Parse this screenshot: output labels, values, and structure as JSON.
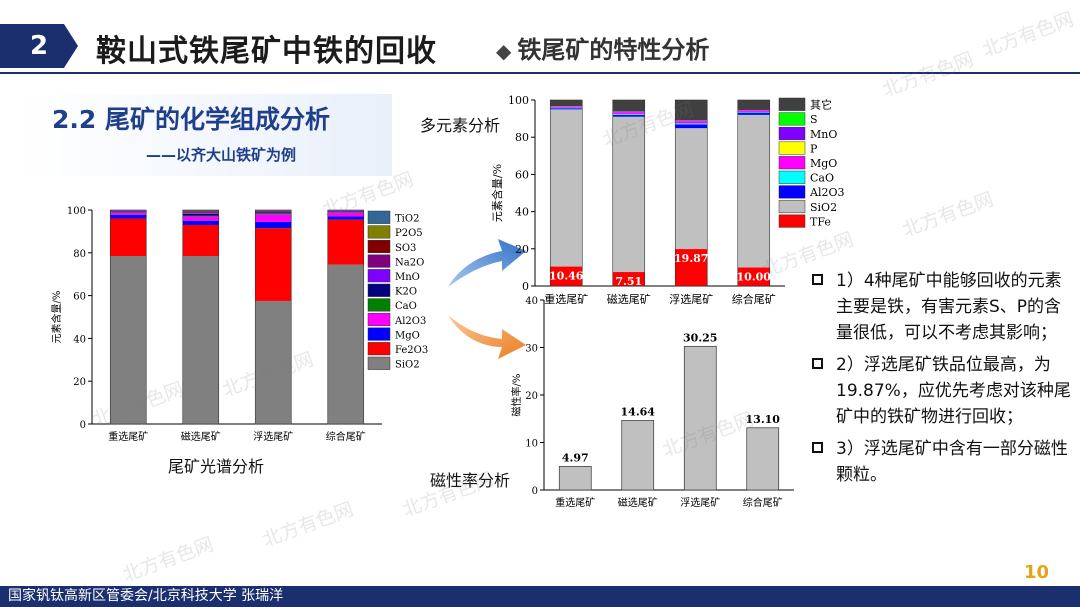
{
  "header": {
    "section_number": "2",
    "title": "鞍山式铁尾矿中铁的回收",
    "subtitle": "铁尾矿的特性分析"
  },
  "section": {
    "title": "2.2 尾矿的化学组成分析",
    "subtitle": "——以齐大山铁矿为例"
  },
  "labels": {
    "spectrum": "尾矿光谱分析",
    "multi": "多元素分析",
    "magnetic": "磁性率分析"
  },
  "bullets": [
    "1）4种尾矿中能够回收的元素主要是铁，有害元素S、P的含量很低，可以不考虑其影响；",
    "2）浮选尾矿铁品位最高，为19.87%，应优先考虑对该种尾矿中的铁矿物进行回收；",
    "3）浮选尾矿中含有一部分磁性颗粒。"
  ],
  "footer": {
    "org": "国家钒钛高新区管委会/北京科技大学 张瑞洋",
    "page": "10"
  },
  "watermark": "北方有色网",
  "colors": {
    "navy": "#1b2f6e",
    "accent": "#e8a21a",
    "arrow_blue": "#3f7fcf",
    "arrow_orange": "#f08a2a"
  },
  "chart_data": [
    {
      "type": "bar",
      "stacked": true,
      "title": "尾矿光谱分析",
      "xlabel": "",
      "ylabel": "元素含量/%",
      "ylim": [
        0,
        100
      ],
      "yticks": [
        0,
        20,
        40,
        60,
        80,
        100
      ],
      "categories": [
        "重选尾矿",
        "磁选尾矿",
        "浮选尾矿",
        "综合尾矿"
      ],
      "series": [
        {
          "name": "SiO2",
          "color": "#808080",
          "values": [
            78.5,
            78.5,
            57.5,
            74.5
          ]
        },
        {
          "name": "Fe2O3",
          "color": "#ff0000",
          "values": [
            17.5,
            14.5,
            34.0,
            21.0
          ]
        },
        {
          "name": "MgO",
          "color": "#0000ff",
          "values": [
            1.8,
            2.0,
            3.0,
            1.5
          ]
        },
        {
          "name": "Al2O3",
          "color": "#ff00ff",
          "values": [
            1.0,
            2.0,
            3.5,
            1.8
          ]
        },
        {
          "name": "CaO",
          "color": "#008000",
          "values": [
            0.3,
            0.4,
            0.6,
            0.3
          ]
        },
        {
          "name": "K2O",
          "color": "#000080",
          "values": [
            0.3,
            0.8,
            0.3,
            0.3
          ]
        },
        {
          "name": "MnO",
          "color": "#8000ff",
          "values": [
            0.2,
            0.3,
            0.3,
            0.2
          ]
        },
        {
          "name": "Na2O",
          "color": "#800080",
          "values": [
            0.2,
            0.5,
            0.4,
            0.2
          ]
        },
        {
          "name": "SO3",
          "color": "#800000",
          "values": [
            0.1,
            0.3,
            0.2,
            0.1
          ]
        },
        {
          "name": "P2O5",
          "color": "#808000",
          "values": [
            0.05,
            0.2,
            0.1,
            0.05
          ]
        },
        {
          "name": "TiO2",
          "color": "#336699",
          "values": [
            0.05,
            0.5,
            0.1,
            0.05
          ]
        }
      ],
      "legend": "right"
    },
    {
      "type": "bar",
      "stacked": true,
      "title": "多元素分析",
      "xlabel": "",
      "ylabel": "元素含量/%",
      "ylim": [
        0,
        100
      ],
      "yticks": [
        0,
        20,
        40,
        60,
        80,
        100
      ],
      "categories": [
        "重选尾矿",
        "磁选尾矿",
        "浮选尾矿",
        "综合尾矿"
      ],
      "series": [
        {
          "name": "TFe",
          "color": "#ff0000",
          "values": [
            10.46,
            7.51,
            19.87,
            10.0
          ]
        },
        {
          "name": "SiO2",
          "color": "#c0c0c0",
          "values": [
            84.5,
            83.5,
            65.0,
            82.0
          ]
        },
        {
          "name": "Al2O3",
          "color": "#0000ff",
          "values": [
            0.6,
            1.0,
            2.0,
            1.2
          ]
        },
        {
          "name": "CaO",
          "color": "#00ffff",
          "values": [
            0.3,
            0.5,
            0.6,
            0.4
          ]
        },
        {
          "name": "MgO",
          "color": "#ff00ff",
          "values": [
            0.6,
            1.0,
            1.2,
            0.8
          ]
        },
        {
          "name": "P",
          "color": "#ffff00",
          "values": [
            0.05,
            0.1,
            0.1,
            0.05
          ]
        },
        {
          "name": "MnO",
          "color": "#8000ff",
          "values": [
            0.1,
            0.2,
            0.3,
            0.1
          ]
        },
        {
          "name": "S",
          "color": "#00ff00",
          "values": [
            0.05,
            0.1,
            0.1,
            0.05
          ]
        },
        {
          "name": "其它",
          "color": "#404040",
          "values": [
            3.34,
            6.09,
            10.83,
            5.4
          ]
        }
      ],
      "data_labels": [
        "10.46",
        "7.51",
        "19.87",
        "10.00"
      ],
      "legend": "right"
    },
    {
      "type": "bar",
      "title": "磁性率分析",
      "xlabel": "",
      "ylabel": "磁性率/%",
      "ylim": [
        0,
        40
      ],
      "yticks": [
        0,
        10,
        20,
        30,
        40
      ],
      "categories": [
        "重选尾矿",
        "磁选尾矿",
        "浮选尾矿",
        "综合尾矿"
      ],
      "values": [
        4.97,
        14.64,
        30.25,
        13.1
      ],
      "data_labels": [
        "4.97",
        "14.64",
        "30.25",
        "13.10"
      ],
      "color": "#c0c0c0"
    }
  ]
}
